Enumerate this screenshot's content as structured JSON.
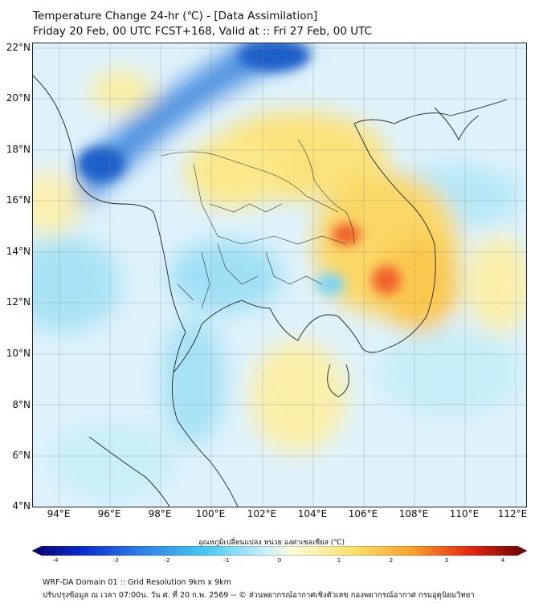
{
  "header": {
    "title_line1": "Temperature Change 24-hr (℃) - [Data Assimilation]",
    "title_line2": "Friday 20 Feb, 00 UTC FCST+168, Valid at :: Fri 27 Feb, 00 UTC"
  },
  "map": {
    "lat_labels": [
      "22°N",
      "20°N",
      "18°N",
      "16°N",
      "14°N",
      "12°N",
      "10°N",
      "8°N",
      "6°N",
      "4°N"
    ],
    "lon_labels": [
      "94°E",
      "96°E",
      "98°E",
      "100°E",
      "102°E",
      "104°E",
      "106°E",
      "108°E",
      "110°E",
      "112°E"
    ]
  },
  "colorbar": {
    "title": "อุณหภูมิเปลี่ยนแปลง หน่วย องศาเซลเซียส (℃)",
    "ticks": [
      "-4",
      "-3",
      "-2",
      "-1",
      "0",
      "1",
      "2",
      "3",
      "4"
    ],
    "min": -4,
    "max": 4
  },
  "footer": {
    "line1": "WRF-DA Domain 01 :: Grid Resolution 9km x 9km",
    "line2": "ปรับปรุงข้อมูล ณ เวลา 07:00น. วัน ศ. ที่ 20 ก.พ. 2569 -- © ส่วนพยากรณ์อากาศเชิงตัวเลข กองพยากรณ์อากาศ กรมอุตุนิยมวิทยา"
  }
}
